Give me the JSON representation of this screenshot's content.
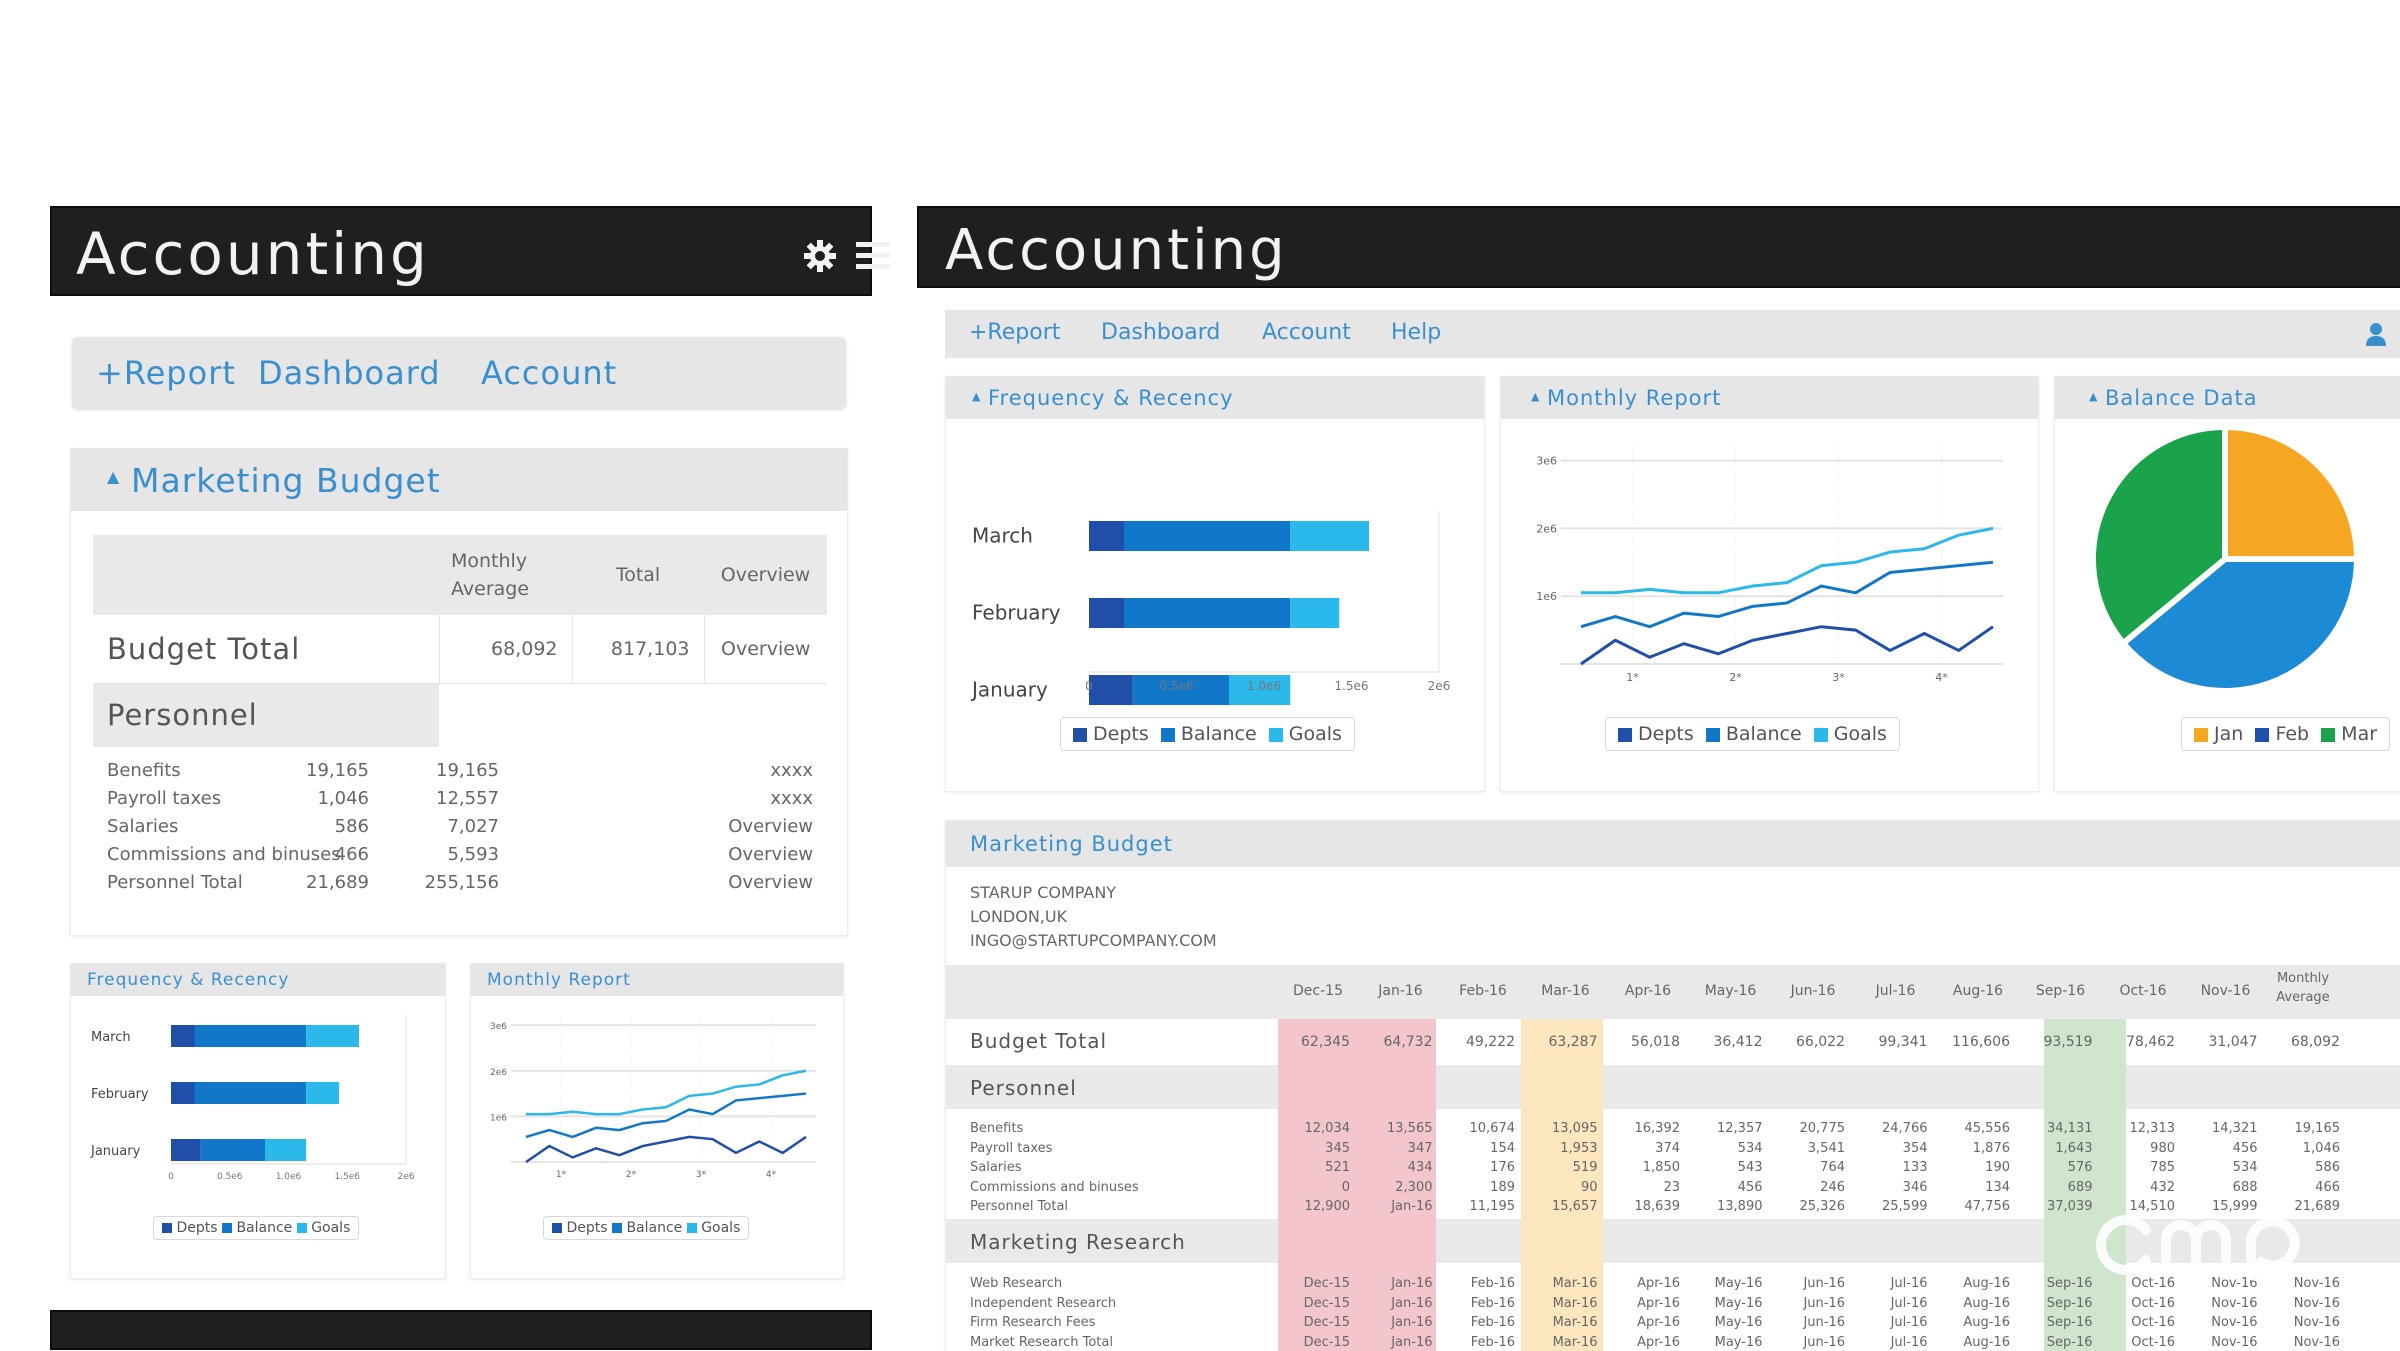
{
  "left": {
    "app_title": "Accounting",
    "nav": [
      "+Report",
      "Dashboard",
      "Account"
    ],
    "budget": {
      "title": "Marketing Budget",
      "headers": [
        "Monthly Average",
        "Total",
        "Overview"
      ],
      "budget_total": {
        "label": "Budget Total",
        "monthly": "68,092",
        "total": "817,103",
        "overview": "Overview"
      },
      "section_label": "Personnel",
      "rows": [
        {
          "label": "Benefits",
          "monthly": "19,165",
          "total": "19,165",
          "overview": "xxxx"
        },
        {
          "label": "Payroll taxes",
          "monthly": "1,046",
          "total": "12,557",
          "overview": "xxxx"
        },
        {
          "label": "Salaries",
          "monthly": "586",
          "total": "7,027",
          "overview": "Overview"
        },
        {
          "label": "Commissions and binuses",
          "monthly": "466",
          "total": "5,593",
          "overview": "Overview"
        },
        {
          "label": "Personnel Total",
          "monthly": "21,689",
          "total": "255,156",
          "overview": "Overview"
        }
      ]
    },
    "mini_freq_title": "Frequency & Recency",
    "mini_monthly_title": "Monthly Report"
  },
  "right": {
    "app_title": "Accounting",
    "nav": [
      "+Report",
      "Dashboard",
      "Account",
      "Help"
    ],
    "freq_title": "Frequency & Recency",
    "monthly_title": "Monthly Report",
    "balance_title": "Balance Data",
    "legend_series": [
      "Depts",
      "Balance",
      "Goals"
    ],
    "pie_legend": [
      "Jan",
      "Feb",
      "Mar"
    ],
    "budget": {
      "title": "Marketing Budget",
      "company": [
        "STARUP COMPANY",
        "LONDON,UK",
        "INGO@STARTUPCOMPANY.COM"
      ],
      "months": [
        "Dec-15",
        "Jan-16",
        "Feb-16",
        "Mar-16",
        "Apr-16",
        "May-16",
        "Jun-16",
        "Jul-16",
        "Aug-16",
        "Sep-16",
        "Oct-16",
        "Nov-16"
      ],
      "avg_header": "Monthly Average",
      "budget_total": {
        "label": "Budget Total",
        "values": [
          "62,345",
          "64,732",
          "49,222",
          "63,287",
          "56,018",
          "36,412",
          "66,022",
          "99,341",
          "116,606",
          "93,519",
          "78,462",
          "31,047"
        ],
        "avg": "68,092"
      },
      "personnel_label": "Personnel",
      "personnel_rows": [
        {
          "label": "Benefits",
          "values": [
            "12,034",
            "13,565",
            "10,674",
            "13,095",
            "16,392",
            "12,357",
            "20,775",
            "24,766",
            "45,556",
            "34,131",
            "12,313",
            "14,321"
          ],
          "avg": "19,165"
        },
        {
          "label": "Payroll taxes",
          "values": [
            "345",
            "347",
            "154",
            "1,953",
            "374",
            "534",
            "3,541",
            "354",
            "1,876",
            "1,643",
            "980",
            "456"
          ],
          "avg": "1,046"
        },
        {
          "label": "Salaries",
          "values": [
            "521",
            "434",
            "176",
            "519",
            "1,850",
            "543",
            "764",
            "133",
            "190",
            "576",
            "785",
            "534"
          ],
          "avg": "586"
        },
        {
          "label": "Commissions and binuses",
          "values": [
            "0",
            "2,300",
            "189",
            "90",
            "23",
            "456",
            "246",
            "346",
            "134",
            "689",
            "432",
            "688"
          ],
          "avg": "466"
        },
        {
          "label": "Personnel Total",
          "values": [
            "12,900",
            "Jan-16",
            "11,195",
            "15,657",
            "18,639",
            "13,890",
            "25,326",
            "25,599",
            "47,756",
            "37,039",
            "14,510",
            "15,999"
          ],
          "avg": "21,689"
        }
      ],
      "research_label": "Marketing Research",
      "research_rows": [
        {
          "label": "Web Research",
          "values": [
            "Dec-15",
            "Jan-16",
            "Feb-16",
            "Mar-16",
            "Apr-16",
            "May-16",
            "Jun-16",
            "Jul-16",
            "Aug-16",
            "Sep-16",
            "Oct-16",
            "Nov-16"
          ],
          "avg": "Nov-16"
        },
        {
          "label": "Independent Research",
          "values": [
            "Dec-15",
            "Jan-16",
            "Feb-16",
            "Mar-16",
            "Apr-16",
            "May-16",
            "Jun-16",
            "Jul-16",
            "Aug-16",
            "Sep-16",
            "Oct-16",
            "Nov-16"
          ],
          "avg": "Nov-16"
        },
        {
          "label": "Firm Research Fees",
          "values": [
            "Dec-15",
            "Jan-16",
            "Feb-16",
            "Mar-16",
            "Apr-16",
            "May-16",
            "Jun-16",
            "Jul-16",
            "Aug-16",
            "Sep-16",
            "Oct-16",
            "Nov-16"
          ],
          "avg": "Nov-16"
        },
        {
          "label": "Market Research Total",
          "values": [
            "Dec-15",
            "Jan-16",
            "Feb-16",
            "Mar-16",
            "Apr-16",
            "May-16",
            "Jun-16",
            "Jul-16",
            "Aug-16",
            "Sep-16",
            "Oct-16",
            "Nov-16"
          ],
          "avg": "Nov-16"
        }
      ]
    }
  },
  "colors": {
    "dark_blue": "#1f4fa8",
    "mid_blue": "#1178c9",
    "light_blue": "#2bb8ea",
    "pie_orange": "#f5a623",
    "pie_blue": "#1d8ad6",
    "pie_green": "#1aa34a",
    "hl_red": "#f2c6cc",
    "hl_yellow": "#fbe6bd",
    "hl_green": "#cfe5cd"
  },
  "chart_data": [
    {
      "type": "bar",
      "title": "Frequency & Recency",
      "categories": [
        "March",
        "February",
        "January"
      ],
      "series": [
        {
          "name": "Depts",
          "values": [
            0.2,
            0.2,
            0.25
          ]
        },
        {
          "name": "Balance",
          "values": [
            0.95,
            0.95,
            0.55
          ]
        },
        {
          "name": "Goals",
          "values": [
            0.45,
            0.28,
            0.35
          ]
        }
      ],
      "stacked": true,
      "xticks": [
        "0",
        "0.5e6",
        "1.0e6",
        "1.5e6",
        "2e6"
      ],
      "xlim": [
        0,
        2
      ]
    },
    {
      "type": "line",
      "title": "Monthly Report",
      "x": [
        0,
        1,
        2,
        3,
        4,
        5,
        6,
        7,
        8,
        9,
        10,
        11,
        12
      ],
      "xticks": [
        "1*",
        "2*",
        "3*",
        "4*"
      ],
      "yticks": [
        "3e6",
        "2e6",
        "1e6"
      ],
      "ylim": [
        0,
        3.2
      ],
      "series": [
        {
          "name": "Depts",
          "values": [
            0.0,
            0.35,
            0.1,
            0.3,
            0.15,
            0.35,
            0.45,
            0.55,
            0.5,
            0.2,
            0.45,
            0.2,
            0.55
          ]
        },
        {
          "name": "Balance",
          "values": [
            0.55,
            0.7,
            0.55,
            0.75,
            0.7,
            0.85,
            0.9,
            1.15,
            1.05,
            1.35,
            1.4,
            1.45,
            1.5
          ]
        },
        {
          "name": "Goals",
          "values": [
            1.05,
            1.05,
            1.1,
            1.05,
            1.05,
            1.15,
            1.2,
            1.45,
            1.5,
            1.65,
            1.7,
            1.9,
            2.0
          ]
        }
      ],
      "grid": true
    },
    {
      "type": "pie",
      "title": "Balance Data",
      "labels": [
        "Jan",
        "Feb",
        "Mar"
      ],
      "values": [
        25,
        39,
        36
      ]
    }
  ]
}
